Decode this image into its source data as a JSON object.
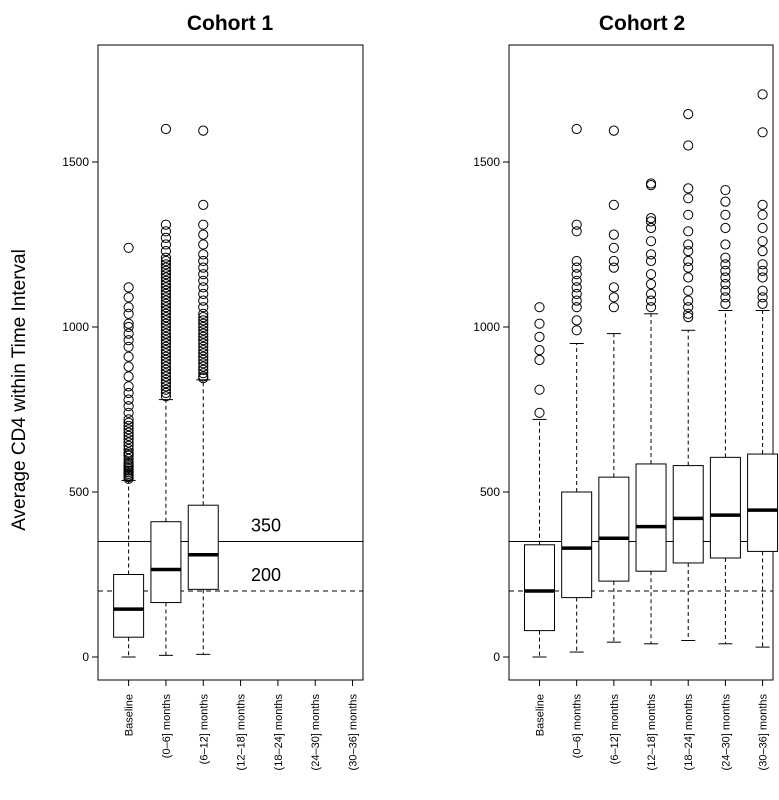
{
  "chart_data": {
    "type": "box",
    "ylabel": "Average CD4 within Time Interval",
    "categories": [
      "Baseline",
      "(0–6] months",
      "(6–12] months",
      "(12–18] months",
      "(18–24] months",
      "(24–30] months",
      "(30–36] months"
    ],
    "yticks": [
      0,
      500,
      1000,
      1500
    ],
    "ylim": [
      -80,
      1760
    ],
    "reference_lines": [
      {
        "value": 350,
        "label": "350",
        "style": "solid"
      },
      {
        "value": 200,
        "label": "200",
        "style": "dashed"
      }
    ],
    "panels": [
      {
        "title": "Cohort 1",
        "boxes": [
          {
            "category": "Baseline",
            "min": 0,
            "q1": 60,
            "median": 145,
            "q3": 250,
            "max": 535,
            "outliers": [
              540,
              545,
              550,
              555,
              560,
              565,
              570,
              575,
              580,
              585,
              590,
              600,
              610,
              615,
              620,
              630,
              640,
              650,
              660,
              670,
              680,
              690,
              700,
              710,
              720,
              740,
              760,
              780,
              800,
              820,
              850,
              880,
              910,
              940,
              960,
              980,
              1000,
              1010,
              1040,
              1060,
              1090,
              1120,
              1240
            ]
          },
          {
            "category": "(0–6] months",
            "min": 5,
            "q1": 165,
            "median": 265,
            "q3": 410,
            "max": 780,
            "outliers": [
              790,
              800,
              810,
              820,
              830,
              840,
              850,
              860,
              870,
              880,
              890,
              900,
              910,
              920,
              930,
              940,
              950,
              960,
              970,
              980,
              990,
              1000,
              1010,
              1020,
              1030,
              1040,
              1050,
              1060,
              1070,
              1080,
              1090,
              1100,
              1110,
              1120,
              1130,
              1140,
              1150,
              1160,
              1170,
              1180,
              1190,
              1200,
              1210,
              1230,
              1250,
              1270,
              1290,
              1310,
              1600
            ]
          },
          {
            "category": "(6–12] months",
            "min": 8,
            "q1": 205,
            "median": 310,
            "q3": 460,
            "max": 840,
            "outliers": [
              845,
              850,
              860,
              870,
              880,
              890,
              900,
              910,
              920,
              930,
              940,
              950,
              960,
              970,
              980,
              990,
              1000,
              1010,
              1020,
              1030,
              1040,
              1060,
              1080,
              1100,
              1120,
              1140,
              1160,
              1180,
              1200,
              1220,
              1250,
              1280,
              1310,
              1370,
              1595
            ]
          }
        ]
      },
      {
        "title": "Cohort 2",
        "boxes": [
          {
            "category": "Baseline",
            "min": 0,
            "q1": 80,
            "median": 200,
            "q3": 340,
            "max": 720,
            "outliers": [
              740,
              810,
              900,
              930,
              970,
              1010,
              1060
            ]
          },
          {
            "category": "(0–6] months",
            "min": 15,
            "q1": 180,
            "median": 330,
            "q3": 500,
            "max": 950,
            "outliers": [
              990,
              1020,
              1060,
              1080,
              1100,
              1120,
              1140,
              1160,
              1180,
              1200,
              1290,
              1310,
              1600
            ]
          },
          {
            "category": "(6–12] months",
            "min": 45,
            "q1": 230,
            "median": 360,
            "q3": 545,
            "max": 980,
            "outliers": [
              1060,
              1090,
              1120,
              1180,
              1200,
              1240,
              1280,
              1370,
              1595
            ]
          },
          {
            "category": "(12–18] months",
            "min": 40,
            "q1": 260,
            "median": 395,
            "q3": 585,
            "max": 1040,
            "outliers": [
              1060,
              1080,
              1100,
              1130,
              1160,
              1200,
              1220,
              1260,
              1300,
              1320,
              1330,
              1430,
              1435
            ]
          },
          {
            "category": "(18–24] months",
            "min": 50,
            "q1": 285,
            "median": 420,
            "q3": 580,
            "max": 990,
            "outliers": [
              1030,
              1040,
              1060,
              1080,
              1110,
              1150,
              1180,
              1200,
              1230,
              1250,
              1290,
              1340,
              1390,
              1420,
              1550,
              1645
            ]
          },
          {
            "category": "(24–30] months",
            "min": 40,
            "q1": 300,
            "median": 430,
            "q3": 605,
            "max": 1050,
            "outliers": [
              1070,
              1090,
              1110,
              1130,
              1150,
              1170,
              1190,
              1210,
              1250,
              1300,
              1340,
              1380,
              1415
            ]
          },
          {
            "category": "(30–36] months",
            "min": 30,
            "q1": 320,
            "median": 445,
            "q3": 615,
            "max": 1050,
            "outliers": [
              1070,
              1090,
              1110,
              1150,
              1170,
              1190,
              1230,
              1260,
              1300,
              1340,
              1370,
              1590,
              1705
            ]
          }
        ]
      }
    ]
  }
}
